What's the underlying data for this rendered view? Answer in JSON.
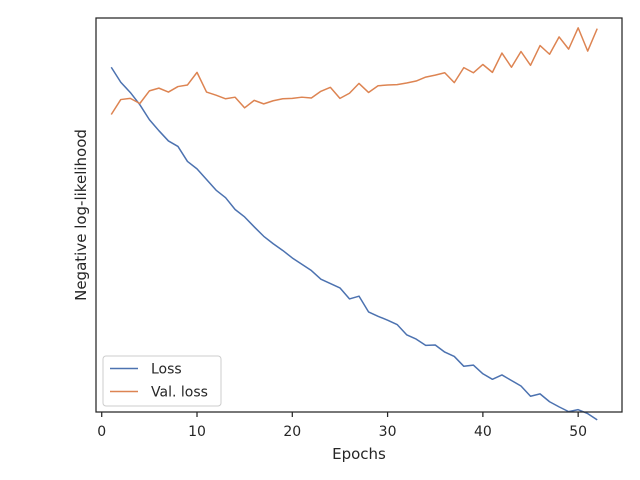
{
  "chart_data": {
    "type": "line",
    "xlabel": "Epochs",
    "ylabel": "Negative log-likelihood",
    "xlim": [
      -0.6,
      54.6
    ],
    "ylim": [
      0.0,
      1.0
    ],
    "xticks": [
      0,
      10,
      20,
      30,
      40,
      50
    ],
    "yticks_visible": false,
    "grid": false,
    "legend_position": "lower-left",
    "x": [
      1,
      2,
      3,
      4,
      5,
      6,
      7,
      8,
      9,
      10,
      11,
      12,
      13,
      14,
      15,
      16,
      17,
      18,
      19,
      20,
      21,
      22,
      23,
      24,
      25,
      26,
      27,
      28,
      29,
      30,
      31,
      32,
      33,
      34,
      35,
      36,
      37,
      38,
      39,
      40,
      41,
      42,
      43,
      44,
      45,
      46,
      47,
      48,
      49,
      50,
      51,
      52
    ],
    "series": [
      {
        "name": "Loss",
        "color": "#4c72b0",
        "values": [
          0.875,
          0.837,
          0.811,
          0.78,
          0.742,
          0.714,
          0.688,
          0.674,
          0.636,
          0.617,
          0.59,
          0.563,
          0.544,
          0.514,
          0.495,
          0.47,
          0.446,
          0.427,
          0.41,
          0.391,
          0.375,
          0.359,
          0.337,
          0.326,
          0.315,
          0.287,
          0.294,
          0.254,
          0.243,
          0.233,
          0.222,
          0.196,
          0.185,
          0.169,
          0.17,
          0.152,
          0.141,
          0.116,
          0.119,
          0.097,
          0.083,
          0.094,
          0.08,
          0.066,
          0.04,
          0.046,
          0.026,
          0.013,
          0.001,
          0.006,
          -0.004,
          -0.02
        ]
      },
      {
        "name": "Val. loss",
        "color": "#dd8452",
        "values": [
          0.755,
          0.793,
          0.796,
          0.783,
          0.815,
          0.822,
          0.812,
          0.826,
          0.83,
          0.862,
          0.812,
          0.804,
          0.795,
          0.799,
          0.772,
          0.791,
          0.782,
          0.79,
          0.795,
          0.796,
          0.799,
          0.797,
          0.814,
          0.824,
          0.796,
          0.809,
          0.834,
          0.811,
          0.828,
          0.83,
          0.831,
          0.835,
          0.84,
          0.85,
          0.855,
          0.861,
          0.836,
          0.874,
          0.861,
          0.882,
          0.862,
          0.911,
          0.875,
          0.915,
          0.88,
          0.93,
          0.908,
          0.952,
          0.921,
          0.975,
          0.916,
          0.973
        ]
      }
    ]
  }
}
